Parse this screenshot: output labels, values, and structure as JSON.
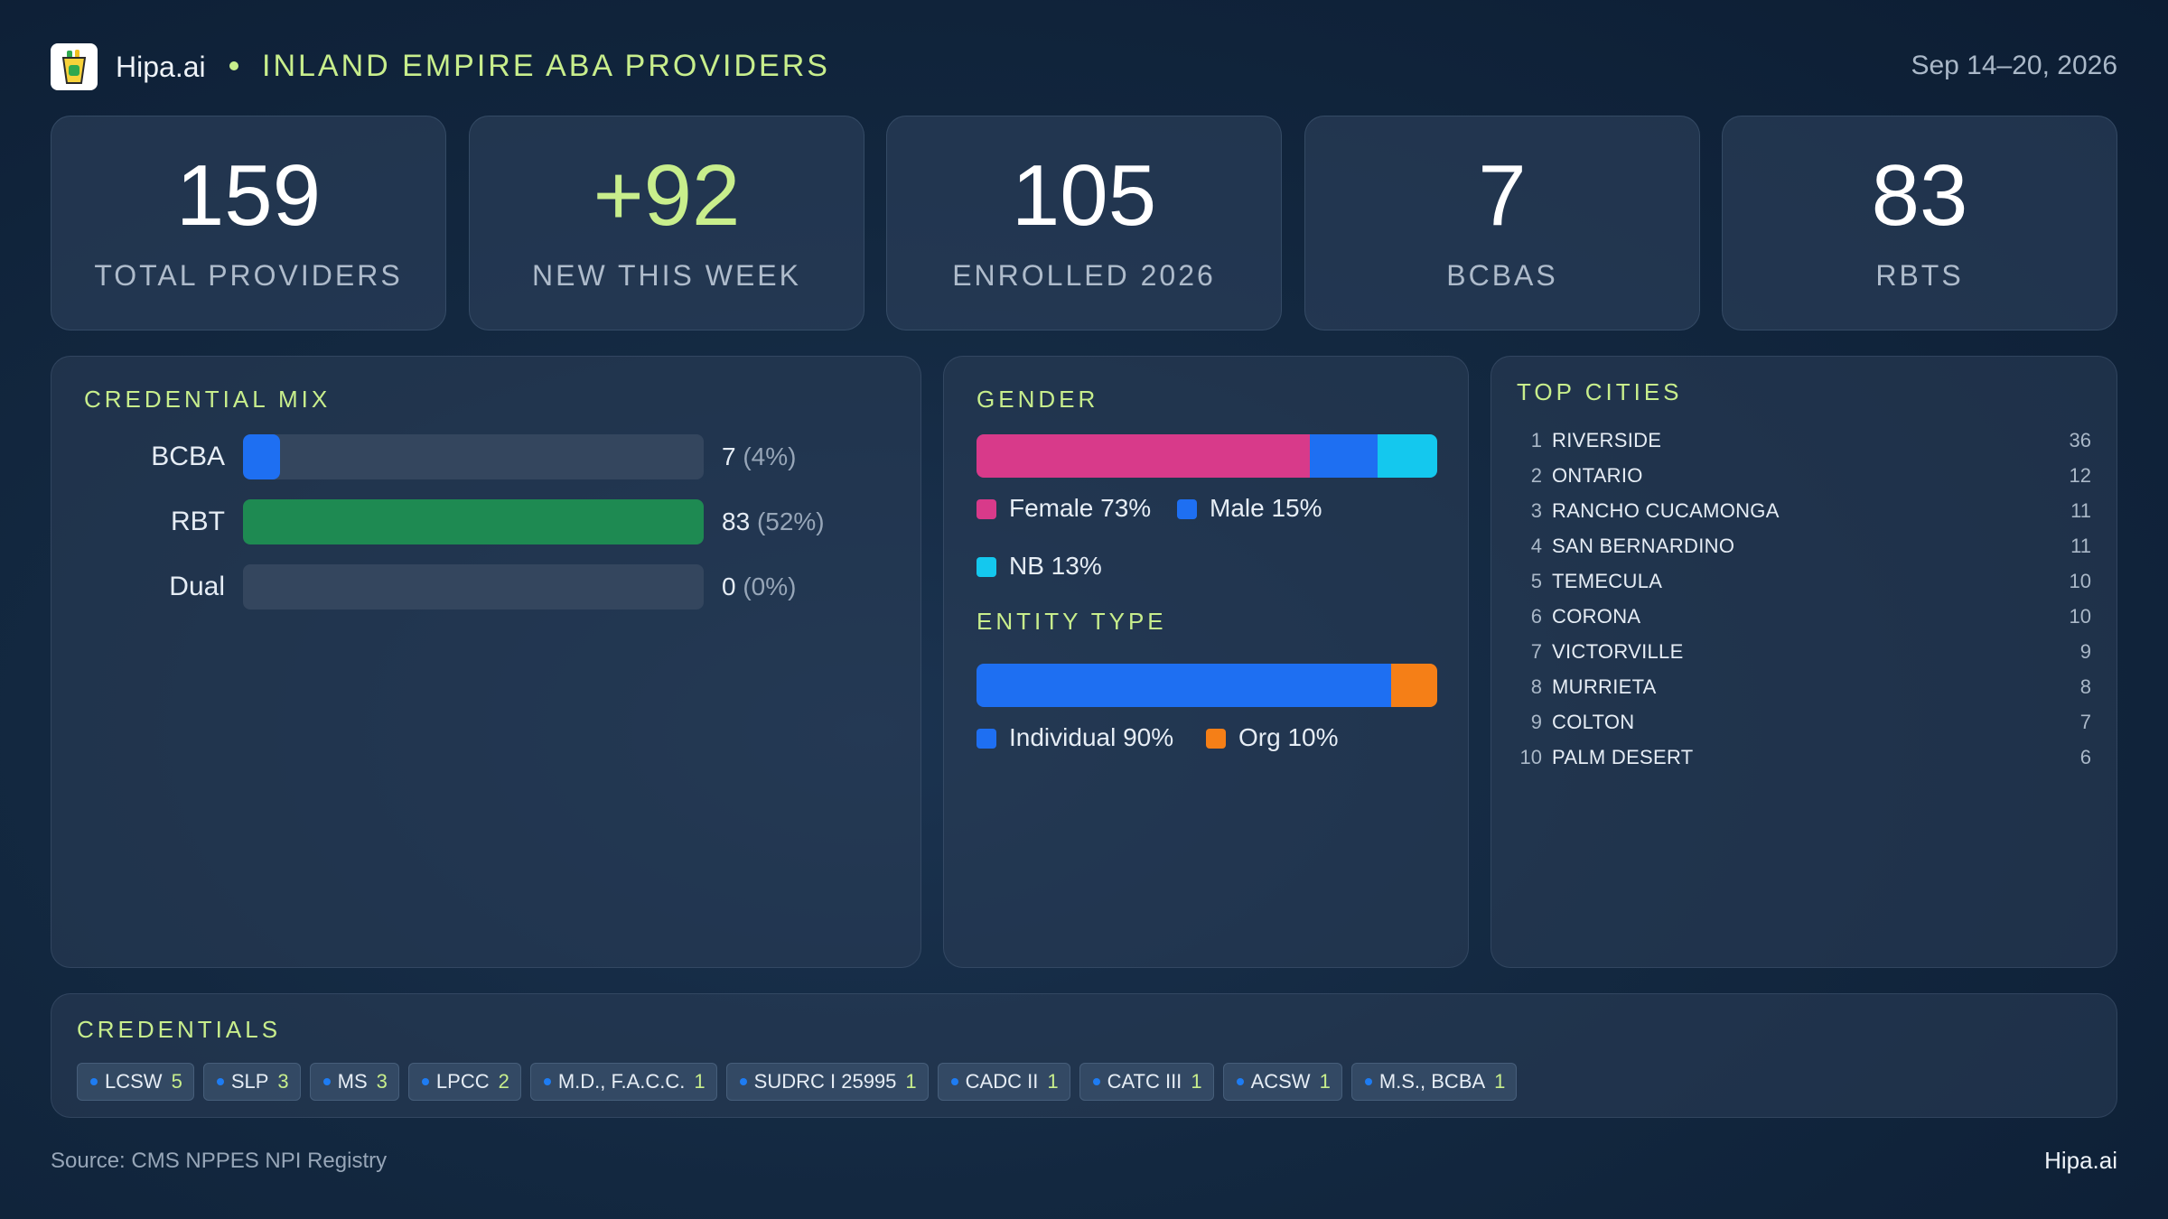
{
  "header": {
    "brand": "Hipa.ai",
    "title": "INLAND EMPIRE ABA PROVIDERS",
    "date_range": "Sep 14–20, 2026"
  },
  "kpis": [
    {
      "value": "159",
      "label": "TOTAL PROVIDERS"
    },
    {
      "value": "+92",
      "label": "NEW THIS WEEK"
    },
    {
      "value": "105",
      "label": "ENROLLED 2026"
    },
    {
      "value": "7",
      "label": "BCBAS"
    },
    {
      "value": "83",
      "label": "RBTS"
    }
  ],
  "credential_mix": {
    "title": "CREDENTIAL MIX",
    "rows": [
      {
        "label": "BCBA",
        "count": "7",
        "pct": "(4%)",
        "fraction": 0.04,
        "color": "#1e6ff2"
      },
      {
        "label": "RBT",
        "count": "83",
        "pct": "(52%)",
        "fraction": 1.0,
        "color": "#1e8a52"
      },
      {
        "label": "Dual",
        "count": "0",
        "pct": "(0%)",
        "fraction": 0,
        "color": "#1e6ff2"
      }
    ]
  },
  "gender": {
    "title": "GENDER",
    "segments": [
      {
        "label": "Female 73%",
        "value": 73,
        "color": "#d83a8a"
      },
      {
        "label": "Male 15%",
        "value": 15,
        "color": "#1e6ff2"
      },
      {
        "label": "NB 13%",
        "value": 13,
        "color": "#14c8ee"
      }
    ]
  },
  "entity_type": {
    "title": "ENTITY TYPE",
    "segments": [
      {
        "label": "Individual 90%",
        "value": 90,
        "color": "#1e6ff2"
      },
      {
        "label": "Org 10%",
        "value": 10,
        "color": "#f57f17"
      }
    ]
  },
  "top_cities": {
    "title": "TOP CITIES",
    "rows": [
      {
        "rank": "1",
        "name": "RIVERSIDE",
        "count": "36"
      },
      {
        "rank": "2",
        "name": "ONTARIO",
        "count": "12"
      },
      {
        "rank": "3",
        "name": "RANCHO CUCAMONGA",
        "count": "11"
      },
      {
        "rank": "4",
        "name": "SAN BERNARDINO",
        "count": "11"
      },
      {
        "rank": "5",
        "name": "TEMECULA",
        "count": "10"
      },
      {
        "rank": "6",
        "name": "CORONA",
        "count": "10"
      },
      {
        "rank": "7",
        "name": "VICTORVILLE",
        "count": "9"
      },
      {
        "rank": "8",
        "name": "MURRIETA",
        "count": "8"
      },
      {
        "rank": "9",
        "name": "COLTON",
        "count": "7"
      },
      {
        "rank": "10",
        "name": "PALM DESERT",
        "count": "6"
      }
    ]
  },
  "credentials": {
    "title": "CREDENTIALS",
    "chips": [
      {
        "name": "LCSW",
        "count": "5"
      },
      {
        "name": "SLP",
        "count": "3"
      },
      {
        "name": "MS",
        "count": "3"
      },
      {
        "name": "LPCC",
        "count": "2"
      },
      {
        "name": "M.D., F.A.C.C.",
        "count": "1"
      },
      {
        "name": "SUDRC I 25995",
        "count": "1"
      },
      {
        "name": "CADC II",
        "count": "1"
      },
      {
        "name": "CATC III",
        "count": "1"
      },
      {
        "name": "ACSW",
        "count": "1"
      },
      {
        "name": "M.S., BCBA",
        "count": "1"
      }
    ]
  },
  "footer": {
    "source": "Source: CMS NPPES NPI Registry",
    "brand": "Hipa.ai"
  },
  "colors": {
    "accent": "#c8ee8c",
    "blue": "#1e6ff2",
    "green": "#1e8a52",
    "pink": "#d83a8a",
    "cyan": "#14c8ee",
    "orange": "#f57f17"
  }
}
